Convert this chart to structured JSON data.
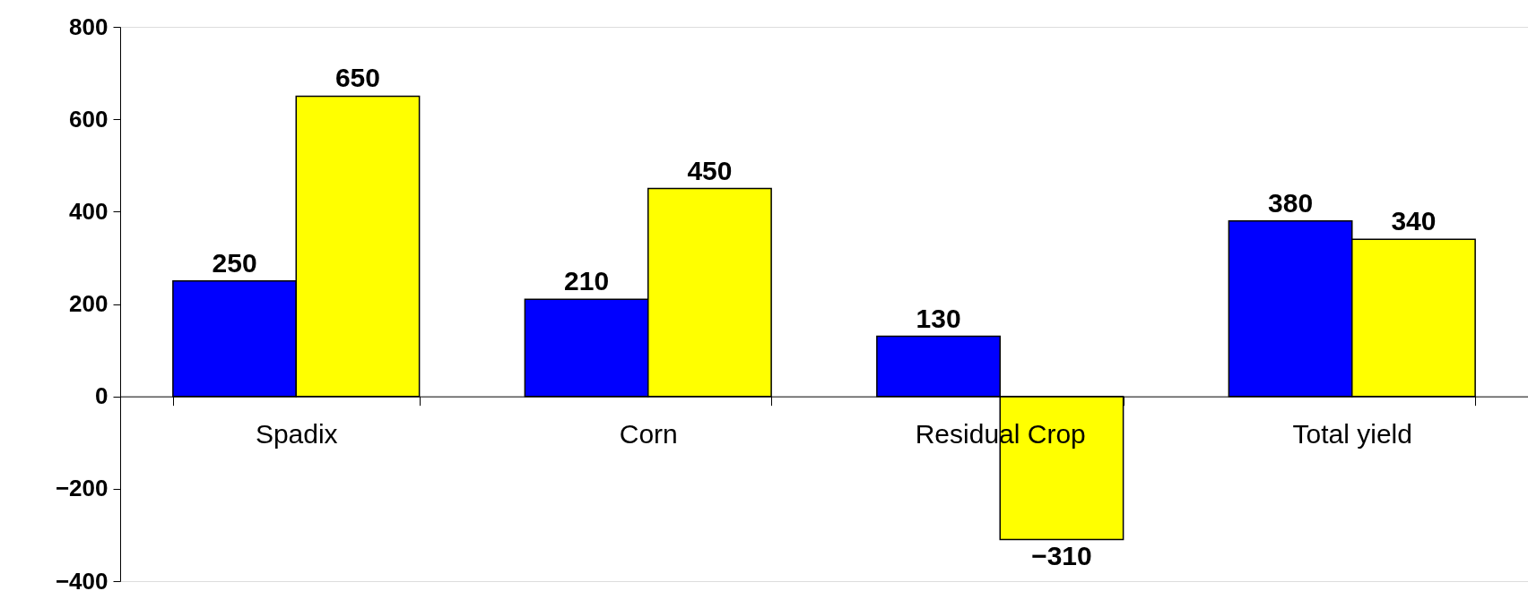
{
  "chart_data": {
    "type": "bar",
    "categories": [
      "Spadix",
      "Corn",
      "Residual Crop",
      "Total yield"
    ],
    "series": [
      {
        "color": "#0000ff",
        "values": [
          250,
          210,
          130,
          380
        ]
      },
      {
        "color": "#ffff00",
        "values": [
          650,
          450,
          -310,
          340
        ]
      }
    ],
    "ylim": [
      -400,
      800
    ],
    "yticks": [
      -400,
      -200,
      0,
      200,
      400,
      600,
      800
    ],
    "grid": false,
    "legend": false,
    "data_labels": true
  }
}
